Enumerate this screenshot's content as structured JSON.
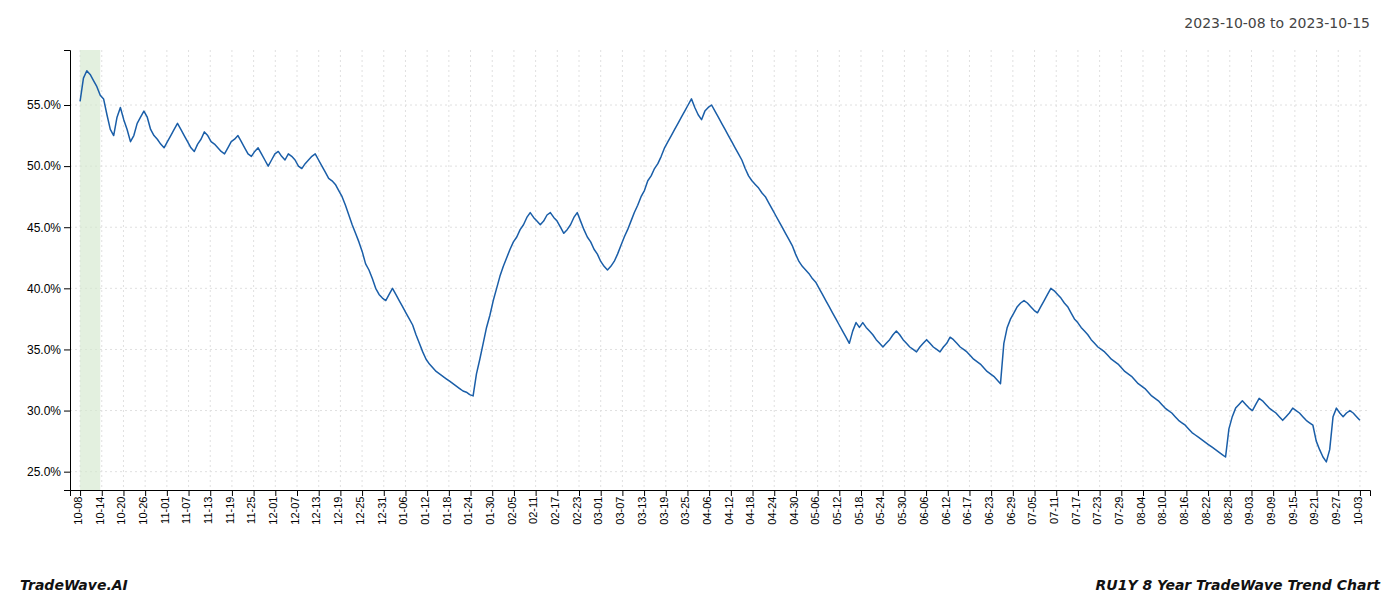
{
  "chart_data": {
    "type": "line",
    "title": "2023-10-08 to 2023-10-15",
    "annotations": [
      "TradeWave.AI",
      "RU1Y 8 Year TradeWave Trend Chart"
    ],
    "color": "#1a5ea8",
    "grid": true,
    "highlight": {
      "x": [
        0,
        6
      ],
      "color": "#d4e8ce"
    },
    "xlim": [
      -3,
      384
    ],
    "xticks": [
      {
        "value": 0,
        "label": "10-08"
      },
      {
        "value": 6.457627,
        "label": "10-14"
      },
      {
        "value": 12.915254,
        "label": "10-20"
      },
      {
        "value": 19.372881,
        "label": "10-26"
      },
      {
        "value": 25.830508,
        "label": "11-01"
      },
      {
        "value": 32.288136,
        "label": "11-07"
      },
      {
        "value": 38.745763,
        "label": "11-13"
      },
      {
        "value": 45.20339,
        "label": "11-19"
      },
      {
        "value": 51.661017,
        "label": "11-25"
      },
      {
        "value": 58.118644,
        "label": "12-01"
      },
      {
        "value": 64.576271,
        "label": "12-07"
      },
      {
        "value": 71.033898,
        "label": "12-13"
      },
      {
        "value": 77.491525,
        "label": "12-19"
      },
      {
        "value": 83.949153,
        "label": "12-25"
      },
      {
        "value": 90.40678,
        "label": "12-31"
      },
      {
        "value": 96.864407,
        "label": "01-06"
      },
      {
        "value": 103.322034,
        "label": "01-12"
      },
      {
        "value": 109.779661,
        "label": "01-18"
      },
      {
        "value": 116.237288,
        "label": "01-24"
      },
      {
        "value": 122.694915,
        "label": "01-30"
      },
      {
        "value": 129.152542,
        "label": "02-05"
      },
      {
        "value": 135.610169,
        "label": "02-11"
      },
      {
        "value": 142.067797,
        "label": "02-17"
      },
      {
        "value": 148.525424,
        "label": "02-23"
      },
      {
        "value": 154.983051,
        "label": "03-01"
      },
      {
        "value": 161.440678,
        "label": "03-07"
      },
      {
        "value": 167.898305,
        "label": "03-13"
      },
      {
        "value": 174.355932,
        "label": "03-19"
      },
      {
        "value": 180.813559,
        "label": "03-25"
      },
      {
        "value": 187.271186,
        "label": "04-06"
      },
      {
        "value": 193.728814,
        "label": "04-12"
      },
      {
        "value": 200.186441,
        "label": "04-18"
      },
      {
        "value": 206.644068,
        "label": "04-24"
      },
      {
        "value": 213.101695,
        "label": "04-30"
      },
      {
        "value": 219.559322,
        "label": "05-06"
      },
      {
        "value": 226.016949,
        "label": "05-12"
      },
      {
        "value": 232.474576,
        "label": "05-18"
      },
      {
        "value": 238.932203,
        "label": "05-24"
      },
      {
        "value": 245.389831,
        "label": "05-30"
      },
      {
        "value": 251.847458,
        "label": "06-06"
      },
      {
        "value": 258.305085,
        "label": "06-12"
      },
      {
        "value": 264.762712,
        "label": "06-17"
      },
      {
        "value": 271.220339,
        "label": "06-23"
      },
      {
        "value": 277.677966,
        "label": "06-29"
      },
      {
        "value": 284.135593,
        "label": "07-05"
      },
      {
        "value": 290.59322,
        "label": "07-11"
      },
      {
        "value": 297.050847,
        "label": "07-17"
      },
      {
        "value": 303.508475,
        "label": "07-23"
      },
      {
        "value": 309.966102,
        "label": "07-29"
      },
      {
        "value": 316.423729,
        "label": "08-04"
      },
      {
        "value": 322.881356,
        "label": "08-10"
      },
      {
        "value": 329.338983,
        "label": "08-16"
      },
      {
        "value": 335.79661,
        "label": "08-22"
      },
      {
        "value": 342.254237,
        "label": "08-28"
      },
      {
        "value": 348.711864,
        "label": "09-03"
      },
      {
        "value": 355.169492,
        "label": "09-09"
      },
      {
        "value": 361.627119,
        "label": "09-15"
      },
      {
        "value": 368.084746,
        "label": "09-21"
      },
      {
        "value": 374.542373,
        "label": "09-27"
      },
      {
        "value": 381,
        "label": "10-03"
      }
    ],
    "ylim": [
      0.235,
      0.595
    ],
    "yticks": [
      {
        "value": 0.25,
        "label": "25.0%"
      },
      {
        "value": 0.3,
        "label": "30.0%"
      },
      {
        "value": 0.35,
        "label": "35.0%"
      },
      {
        "value": 0.4,
        "label": "40.0%"
      },
      {
        "value": 0.45,
        "label": "45.0%"
      },
      {
        "value": 0.5,
        "label": "50.0%"
      },
      {
        "value": 0.55,
        "label": "55.0%"
      }
    ],
    "values": [
      0.553,
      0.572,
      0.578,
      0.575,
      0.57,
      0.565,
      0.558,
      0.555,
      0.542,
      0.53,
      0.525,
      0.54,
      0.548,
      0.538,
      0.53,
      0.52,
      0.525,
      0.535,
      0.54,
      0.545,
      0.54,
      0.53,
      0.525,
      0.522,
      0.518,
      0.515,
      0.52,
      0.525,
      0.53,
      0.535,
      0.53,
      0.525,
      0.52,
      0.515,
      0.512,
      0.518,
      0.522,
      0.528,
      0.525,
      0.52,
      0.518,
      0.515,
      0.512,
      0.51,
      0.515,
      0.52,
      0.522,
      0.525,
      0.52,
      0.515,
      0.51,
      0.508,
      0.512,
      0.515,
      0.51,
      0.505,
      0.5,
      0.505,
      0.51,
      0.512,
      0.508,
      0.505,
      0.51,
      0.508,
      0.505,
      0.5,
      0.498,
      0.502,
      0.505,
      0.508,
      0.51,
      0.505,
      0.5,
      0.495,
      0.49,
      0.488,
      0.485,
      0.48,
      0.475,
      0.468,
      0.46,
      0.452,
      0.445,
      0.438,
      0.43,
      0.42,
      0.415,
      0.408,
      0.4,
      0.395,
      0.392,
      0.39,
      0.395,
      0.4,
      0.395,
      0.39,
      0.385,
      0.38,
      0.375,
      0.37,
      0.362,
      0.355,
      0.348,
      0.342,
      0.338,
      0.335,
      0.332,
      0.33,
      0.328,
      0.326,
      0.324,
      0.322,
      0.32,
      0.318,
      0.316,
      0.315,
      0.313,
      0.312,
      0.33,
      0.342,
      0.355,
      0.368,
      0.378,
      0.39,
      0.4,
      0.41,
      0.418,
      0.425,
      0.432,
      0.438,
      0.442,
      0.448,
      0.452,
      0.458,
      0.462,
      0.458,
      0.455,
      0.452,
      0.455,
      0.46,
      0.462,
      0.458,
      0.455,
      0.45,
      0.445,
      0.448,
      0.452,
      0.458,
      0.462,
      0.455,
      0.448,
      0.442,
      0.438,
      0.432,
      0.428,
      0.422,
      0.418,
      0.415,
      0.418,
      0.422,
      0.428,
      0.435,
      0.442,
      0.448,
      0.455,
      0.462,
      0.468,
      0.475,
      0.48,
      0.488,
      0.492,
      0.498,
      0.502,
      0.508,
      0.515,
      0.52,
      0.525,
      0.53,
      0.535,
      0.54,
      0.545,
      0.55,
      0.555,
      0.548,
      0.542,
      0.538,
      0.545,
      0.548,
      0.55,
      0.545,
      0.54,
      0.535,
      0.53,
      0.525,
      0.52,
      0.515,
      0.51,
      0.505,
      0.498,
      0.492,
      0.488,
      0.485,
      0.482,
      0.478,
      0.475,
      0.47,
      0.465,
      0.46,
      0.455,
      0.45,
      0.445,
      0.44,
      0.435,
      0.428,
      0.422,
      0.418,
      0.415,
      0.412,
      0.408,
      0.405,
      0.4,
      0.395,
      0.39,
      0.385,
      0.38,
      0.375,
      0.37,
      0.365,
      0.36,
      0.355,
      0.365,
      0.372,
      0.368,
      0.372,
      0.368,
      0.365,
      0.362,
      0.358,
      0.355,
      0.352,
      0.355,
      0.358,
      0.362,
      0.365,
      0.362,
      0.358,
      0.355,
      0.352,
      0.35,
      0.348,
      0.352,
      0.355,
      0.358,
      0.355,
      0.352,
      0.35,
      0.348,
      0.352,
      0.355,
      0.36,
      0.358,
      0.355,
      0.352,
      0.35,
      0.348,
      0.345,
      0.342,
      0.34,
      0.338,
      0.335,
      0.332,
      0.33,
      0.328,
      0.325,
      0.322,
      0.355,
      0.368,
      0.375,
      0.38,
      0.385,
      0.388,
      0.39,
      0.388,
      0.385,
      0.382,
      0.38,
      0.385,
      0.39,
      0.395,
      0.4,
      0.398,
      0.395,
      0.392,
      0.388,
      0.385,
      0.38,
      0.375,
      0.372,
      0.368,
      0.365,
      0.362,
      0.358,
      0.355,
      0.352,
      0.35,
      0.348,
      0.345,
      0.342,
      0.34,
      0.338,
      0.335,
      0.332,
      0.33,
      0.328,
      0.325,
      0.322,
      0.32,
      0.318,
      0.315,
      0.312,
      0.31,
      0.308,
      0.305,
      0.302,
      0.3,
      0.298,
      0.295,
      0.292,
      0.29,
      0.288,
      0.285,
      0.282,
      0.28,
      0.278,
      0.276,
      0.274,
      0.272,
      0.27,
      0.268,
      0.266,
      0.264,
      0.262,
      0.285,
      0.295,
      0.302,
      0.305,
      0.308,
      0.305,
      0.302,
      0.3,
      0.305,
      0.31,
      0.308,
      0.305,
      0.302,
      0.3,
      0.298,
      0.295,
      0.292,
      0.295,
      0.298,
      0.302,
      0.3,
      0.298,
      0.295,
      0.292,
      0.29,
      0.288,
      0.275,
      0.268,
      0.262,
      0.258,
      0.268,
      0.295,
      0.302,
      0.298,
      0.295,
      0.298,
      0.3,
      0.298,
      0.295,
      0.292
    ]
  }
}
